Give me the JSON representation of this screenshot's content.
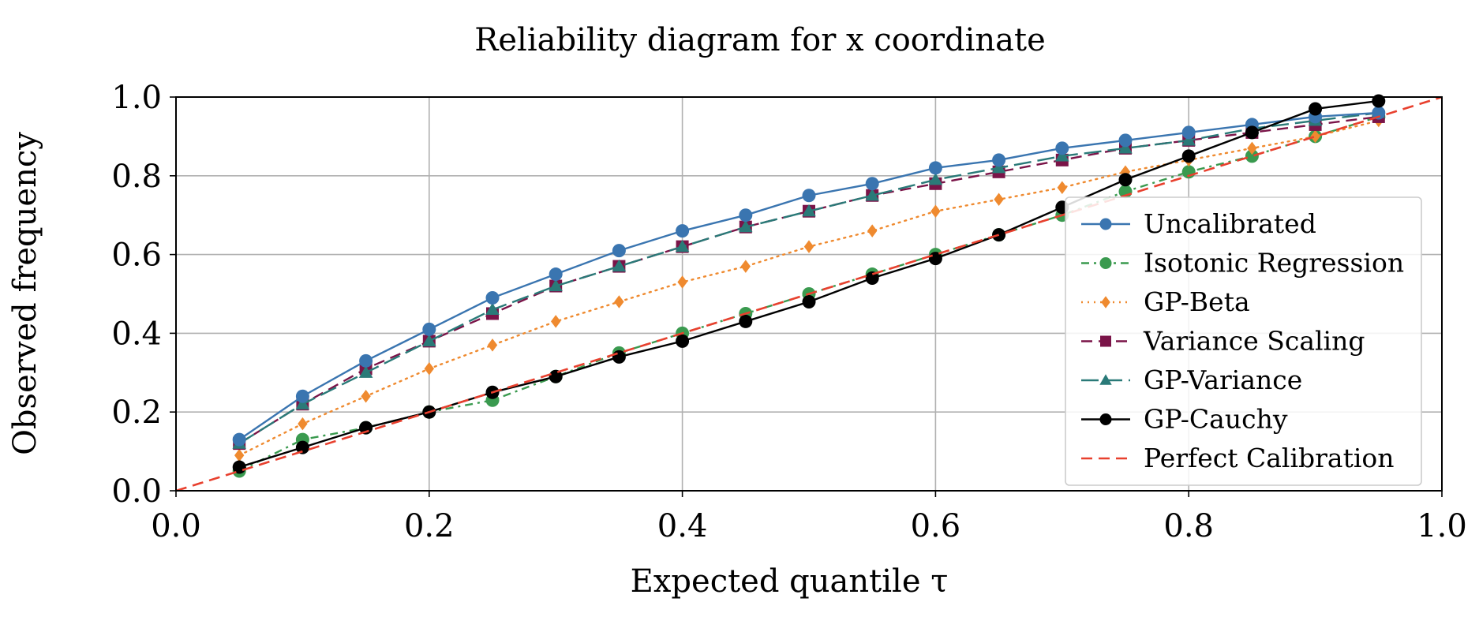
{
  "chart_data": {
    "type": "line",
    "title": "Reliability diagram for x coordinate",
    "xlabel": "Expected quantile τ",
    "ylabel": "Observed frequency",
    "xlim": [
      0,
      1
    ],
    "ylim": [
      0,
      1
    ],
    "grid": true,
    "legend_position": "right",
    "x_ticks": [
      "0.0",
      "0.2",
      "0.4",
      "0.6",
      "0.8",
      "1.0"
    ],
    "y_ticks": [
      "0.0",
      "0.2",
      "0.4",
      "0.6",
      "0.8",
      "1.0"
    ],
    "x": [
      0.05,
      0.1,
      0.15,
      0.2,
      0.25,
      0.3,
      0.35,
      0.4,
      0.45,
      0.5,
      0.55,
      0.6,
      0.65,
      0.7,
      0.75,
      0.8,
      0.85,
      0.9,
      0.95
    ],
    "series": [
      {
        "name": "Uncalibrated",
        "color": "#3a75b0",
        "dash": "solid",
        "marker": "circle",
        "values": [
          0.13,
          0.24,
          0.33,
          0.41,
          0.49,
          0.55,
          0.61,
          0.66,
          0.7,
          0.75,
          0.78,
          0.82,
          0.84,
          0.87,
          0.89,
          0.91,
          0.93,
          0.95,
          0.96
        ]
      },
      {
        "name": "Isotonic Regression",
        "color": "#3a9a4f",
        "dash": "dashdot",
        "marker": "circle",
        "values": [
          0.05,
          0.13,
          0.16,
          0.2,
          0.23,
          0.29,
          0.35,
          0.4,
          0.45,
          0.5,
          0.55,
          0.6,
          0.65,
          0.7,
          0.76,
          0.81,
          0.85,
          0.9,
          0.95
        ]
      },
      {
        "name": "GP-Beta",
        "color": "#ef8a2f",
        "dash": "dotted",
        "marker": "diamond",
        "values": [
          0.09,
          0.17,
          0.24,
          0.31,
          0.37,
          0.43,
          0.48,
          0.53,
          0.57,
          0.62,
          0.66,
          0.71,
          0.74,
          0.77,
          0.81,
          0.84,
          0.87,
          0.9,
          0.94
        ]
      },
      {
        "name": "Variance Scaling",
        "color": "#7a1448",
        "dash": "dashed",
        "marker": "square",
        "values": [
          0.12,
          0.22,
          0.31,
          0.38,
          0.45,
          0.52,
          0.57,
          0.62,
          0.67,
          0.71,
          0.75,
          0.78,
          0.81,
          0.84,
          0.87,
          0.89,
          0.91,
          0.93,
          0.95
        ]
      },
      {
        "name": "GP-Variance",
        "color": "#2a7a78",
        "dash": "longdash",
        "marker": "triangle",
        "values": [
          0.12,
          0.22,
          0.3,
          0.38,
          0.46,
          0.52,
          0.57,
          0.62,
          0.67,
          0.71,
          0.75,
          0.79,
          0.82,
          0.85,
          0.87,
          0.89,
          0.92,
          0.94,
          0.96
        ]
      },
      {
        "name": "GP-Cauchy",
        "color": "#000000",
        "dash": "solid",
        "marker": "circle",
        "values": [
          0.06,
          0.11,
          0.16,
          0.2,
          0.25,
          0.29,
          0.34,
          0.38,
          0.43,
          0.48,
          0.54,
          0.59,
          0.65,
          0.72,
          0.79,
          0.85,
          0.91,
          0.97,
          0.99
        ]
      },
      {
        "name": "Perfect Calibration",
        "color": "#e8402e",
        "dash": "dashed",
        "marker": "none",
        "line_x": [
          0,
          1
        ],
        "line_y": [
          0,
          1
        ]
      }
    ]
  }
}
